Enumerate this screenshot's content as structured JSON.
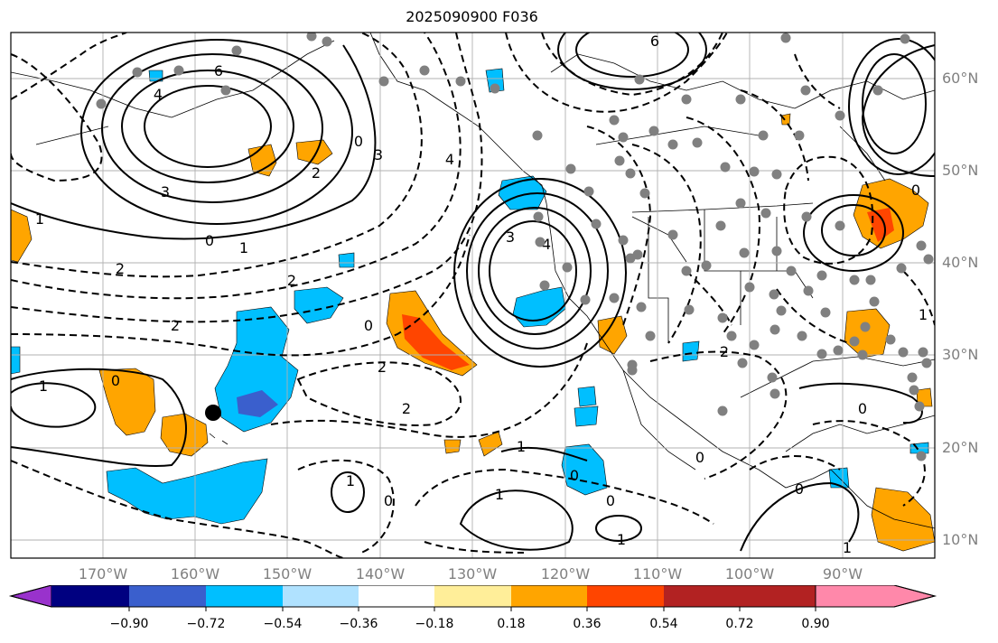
{
  "title": "2025090900 F036",
  "lon_labels": [
    "170°W",
    "160°W",
    "150°W",
    "140°W",
    "130°W",
    "120°W",
    "110°W",
    "100°W",
    "90°W"
  ],
  "lat_labels": [
    "60°N",
    "50°N",
    "40°N",
    "30°N",
    "20°N",
    "10°N"
  ],
  "colorbar": {
    "ticks": [
      "−0.90",
      "−0.72",
      "−0.54",
      "−0.36",
      "−0.18",
      "0.18",
      "0.36",
      "0.54",
      "0.72",
      "0.90"
    ],
    "colors": [
      "#9932cc",
      "#000080",
      "#3a5fcd",
      "#00bfff",
      "#b0e2ff",
      "#ffffff",
      "#ffee99",
      "#ffa500",
      "#ff4500",
      "#b22222",
      "#ff88aa"
    ]
  },
  "contour_labels": [
    "6",
    "4",
    "3",
    "2",
    "1",
    "0",
    "2",
    "1",
    "0",
    "4",
    "3",
    "2",
    "0",
    "4",
    "3",
    "6",
    "1",
    "1",
    "0",
    "2",
    "2",
    "2",
    "0",
    "1",
    "0",
    "1",
    "1",
    "0",
    "0",
    "0",
    "1",
    "0",
    "2",
    "1",
    "0"
  ],
  "colors": {
    "grid": "#b0b0b0",
    "station": "#808080",
    "contour": "#000000"
  }
}
